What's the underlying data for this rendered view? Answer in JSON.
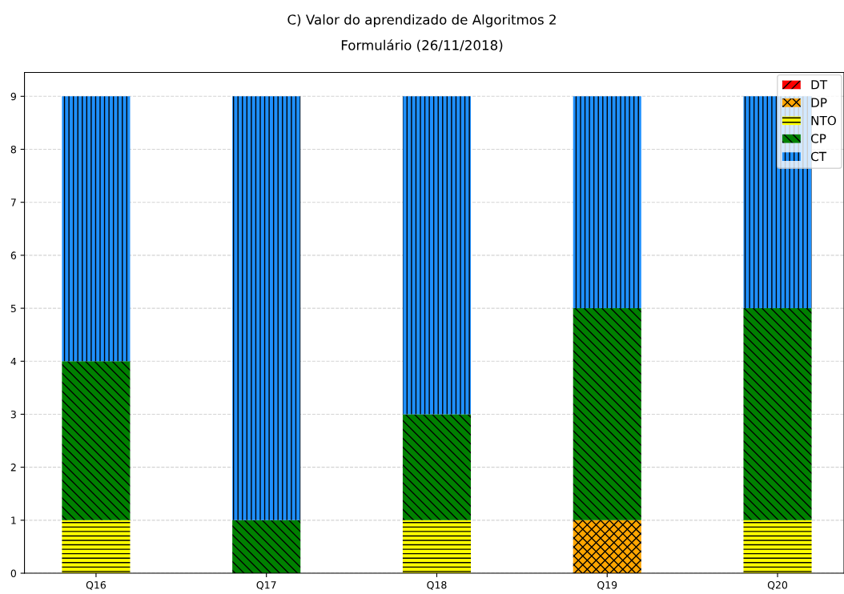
{
  "chart_data": {
    "type": "bar",
    "title": "C) Valor do aprendizado de Algoritmos 2",
    "subtitle": "Formulário (26/11/2018)",
    "categories": [
      "Q16",
      "Q17",
      "Q18",
      "Q19",
      "Q20"
    ],
    "stacked": true,
    "series": [
      {
        "name": "DT",
        "color": "#ff0000",
        "values": [
          0,
          0,
          0,
          0,
          0
        ]
      },
      {
        "name": "DP",
        "color": "#ffa500",
        "values": [
          0,
          0,
          0,
          1,
          0
        ]
      },
      {
        "name": "NTO",
        "color": "#ffff00",
        "values": [
          1,
          0,
          1,
          0,
          1
        ]
      },
      {
        "name": "CP",
        "color": "#008000",
        "values": [
          3,
          1,
          2,
          4,
          4
        ]
      },
      {
        "name": "CT",
        "color": "#1e90ff",
        "values": [
          5,
          8,
          6,
          4,
          4
        ]
      }
    ],
    "ylim": [
      0,
      9.45
    ],
    "yticks": [
      0,
      1,
      2,
      3,
      4,
      5,
      6,
      7,
      8,
      9
    ],
    "grid": "y",
    "legend": "top right"
  }
}
